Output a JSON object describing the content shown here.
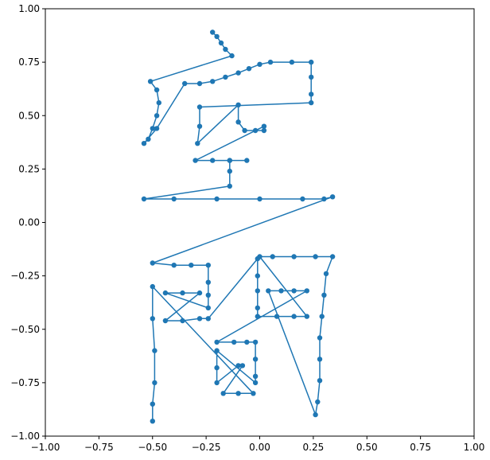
{
  "chart_data": {
    "type": "line",
    "title": "",
    "xlabel": "",
    "ylabel": "",
    "xlim": [
      -1.0,
      1.0
    ],
    "ylim": [
      -1.0,
      1.0
    ],
    "xticks": [
      -1.0,
      -0.75,
      -0.5,
      -0.25,
      0.0,
      0.25,
      0.5,
      0.75,
      1.0
    ],
    "yticks": [
      -1.0,
      -0.75,
      -0.5,
      -0.25,
      0.0,
      0.25,
      0.5,
      0.75,
      1.0
    ],
    "xtick_labels": [
      "−1.00",
      "−0.75",
      "−0.50",
      "−0.25",
      "0.00",
      "0.25",
      "0.50",
      "0.75",
      "1.00"
    ],
    "ytick_labels": [
      "−1.00",
      "−0.75",
      "−0.50",
      "−0.25",
      "0.00",
      "0.25",
      "0.50",
      "0.75",
      "1.00"
    ],
    "grid": false,
    "series": [
      {
        "color": "#1f77b4",
        "marker": "circle",
        "points": [
          [
            -0.22,
            0.89
          ],
          [
            -0.2,
            0.87
          ],
          [
            -0.18,
            0.84
          ],
          [
            -0.16,
            0.81
          ],
          [
            -0.13,
            0.78
          ],
          [
            -0.51,
            0.66
          ],
          [
            -0.48,
            0.62
          ],
          [
            -0.47,
            0.56
          ],
          [
            -0.48,
            0.5
          ],
          [
            -0.5,
            0.44
          ],
          [
            -0.52,
            0.39
          ],
          [
            -0.54,
            0.37
          ],
          [
            -0.48,
            0.44
          ],
          [
            -0.35,
            0.65
          ],
          [
            -0.28,
            0.65
          ],
          [
            -0.22,
            0.66
          ],
          [
            -0.16,
            0.68
          ],
          [
            -0.1,
            0.7
          ],
          [
            -0.05,
            0.72
          ],
          [
            0.0,
            0.74
          ],
          [
            0.05,
            0.75
          ],
          [
            0.15,
            0.75
          ],
          [
            0.24,
            0.75
          ],
          [
            0.24,
            0.68
          ],
          [
            0.24,
            0.6
          ],
          [
            0.24,
            0.56
          ],
          [
            -0.28,
            0.54
          ],
          [
            -0.28,
            0.45
          ],
          [
            -0.29,
            0.37
          ],
          [
            -0.1,
            0.55
          ],
          [
            -0.1,
            0.47
          ],
          [
            -0.07,
            0.43
          ],
          [
            -0.02,
            0.43
          ],
          [
            0.02,
            0.43
          ],
          [
            0.02,
            0.45
          ],
          [
            -0.3,
            0.29
          ],
          [
            -0.22,
            0.29
          ],
          [
            -0.14,
            0.29
          ],
          [
            -0.06,
            0.29
          ],
          [
            -0.14,
            0.29
          ],
          [
            -0.14,
            0.24
          ],
          [
            -0.14,
            0.17
          ],
          [
            -0.54,
            0.11
          ],
          [
            -0.4,
            0.11
          ],
          [
            -0.2,
            0.11
          ],
          [
            0.0,
            0.11
          ],
          [
            0.2,
            0.11
          ],
          [
            0.3,
            0.11
          ],
          [
            0.34,
            0.12
          ],
          [
            -0.5,
            -0.19
          ],
          [
            -0.4,
            -0.2
          ],
          [
            -0.32,
            -0.2
          ],
          [
            -0.24,
            -0.2
          ],
          [
            -0.24,
            -0.28
          ],
          [
            -0.24,
            -0.34
          ],
          [
            -0.24,
            -0.4
          ],
          [
            -0.44,
            -0.33
          ],
          [
            -0.36,
            -0.33
          ],
          [
            -0.28,
            -0.33
          ],
          [
            -0.44,
            -0.46
          ],
          [
            -0.36,
            -0.46
          ],
          [
            -0.28,
            -0.45
          ],
          [
            -0.24,
            -0.45
          ],
          [
            -0.01,
            -0.17
          ],
          [
            -0.01,
            -0.25
          ],
          [
            -0.01,
            -0.32
          ],
          [
            -0.01,
            -0.4
          ],
          [
            -0.01,
            -0.44
          ],
          [
            0.08,
            -0.44
          ],
          [
            0.16,
            -0.44
          ],
          [
            0.22,
            -0.44
          ],
          [
            0.0,
            -0.16
          ],
          [
            0.06,
            -0.16
          ],
          [
            0.16,
            -0.16
          ],
          [
            0.26,
            -0.16
          ],
          [
            0.34,
            -0.16
          ],
          [
            0.31,
            -0.24
          ],
          [
            0.3,
            -0.34
          ],
          [
            0.29,
            -0.44
          ],
          [
            0.28,
            -0.54
          ],
          [
            0.28,
            -0.64
          ],
          [
            0.28,
            -0.74
          ],
          [
            0.27,
            -0.84
          ],
          [
            0.26,
            -0.9
          ],
          [
            0.04,
            -0.32
          ],
          [
            0.1,
            -0.32
          ],
          [
            0.16,
            -0.32
          ],
          [
            0.22,
            -0.32
          ],
          [
            -0.2,
            -0.56
          ],
          [
            -0.12,
            -0.56
          ],
          [
            -0.06,
            -0.56
          ],
          [
            -0.02,
            -0.56
          ],
          [
            -0.02,
            -0.64
          ],
          [
            -0.02,
            -0.72
          ],
          [
            -0.02,
            -0.75
          ],
          [
            -0.2,
            -0.6
          ],
          [
            -0.2,
            -0.68
          ],
          [
            -0.2,
            -0.75
          ],
          [
            -0.1,
            -0.67
          ],
          [
            -0.08,
            -0.67
          ],
          [
            -0.17,
            -0.8
          ],
          [
            -0.1,
            -0.8
          ],
          [
            -0.03,
            -0.8
          ],
          [
            -0.5,
            -0.3
          ],
          [
            -0.5,
            -0.45
          ],
          [
            -0.49,
            -0.6
          ],
          [
            -0.49,
            -0.75
          ],
          [
            -0.5,
            -0.85
          ],
          [
            -0.5,
            -0.93
          ]
        ]
      }
    ]
  }
}
